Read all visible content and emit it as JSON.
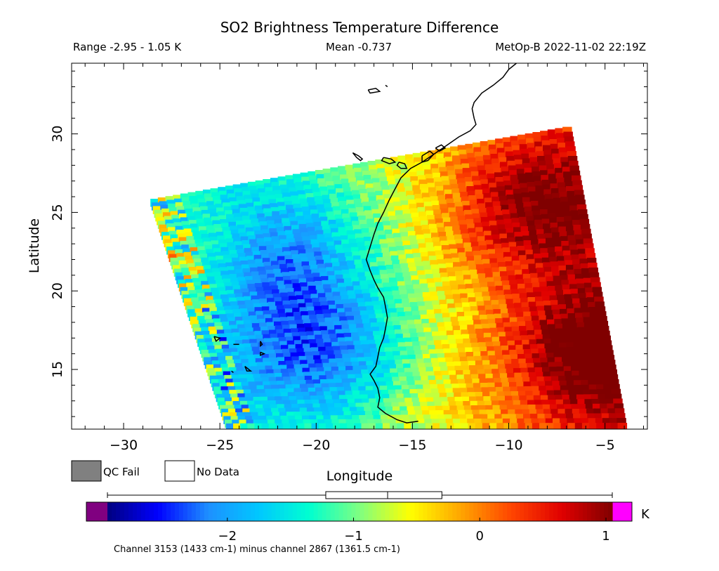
{
  "chart_data": {
    "type": "heatmap",
    "title": "SO2 Brightness Temperature Difference",
    "header": {
      "range_text": "Range -2.95 - 1.05 K",
      "mean_text": "Mean -0.737",
      "satellite_text": "MetOp-B 2022-11-02 22:19Z"
    },
    "xlabel": "Longitude",
    "ylabel": "Latitude",
    "xlim": [
      -32.7,
      -2.8
    ],
    "ylim": [
      11.2,
      34.5
    ],
    "xticks": [
      -30,
      -25,
      -20,
      -15,
      -10,
      -5
    ],
    "yticks": [
      15,
      20,
      25,
      30
    ],
    "x_minor_step": 1,
    "y_minor_step": 1,
    "swath_corners": {
      "top_left": [
        -28.6,
        25.7
      ],
      "top_right": [
        -6.8,
        30.4
      ],
      "bottom_right": [
        -3.9,
        11.2
      ],
      "bottom_left": [
        -24.6,
        11.2
      ]
    },
    "field_features": [
      {
        "name": "low minimum west-central",
        "lon": -19.5,
        "lat": 16.0,
        "value": -2.3
      },
      {
        "name": "low band northwest",
        "lon": -21.5,
        "lat": 22.0,
        "value": -2.0
      },
      {
        "name": "high maximum north-east",
        "lon": -8.5,
        "lat": 25.5,
        "value": 0.9
      },
      {
        "name": "high maximum south-east",
        "lon": -5.5,
        "lat": 16.0,
        "value": 0.95
      },
      {
        "name": "western edge noise",
        "lon": -27.5,
        "lat": 22.0,
        "value": 0.3
      }
    ],
    "colorbar": {
      "min": -2.95,
      "max": 1.05,
      "ticks": [
        -2,
        -1,
        0,
        1
      ],
      "unit": "K",
      "underflow_color": "#800080",
      "overflow_color": "#ff00ff",
      "colors": [
        "#000080",
        "#0000ff",
        "#1e90ff",
        "#00c8ff",
        "#00ffd0",
        "#80ff80",
        "#ffff00",
        "#ffa500",
        "#ff4500",
        "#e00000",
        "#800000"
      ],
      "boxplot": {
        "whisker_low": -2.95,
        "q1": -1.22,
        "median": -0.73,
        "q3": -0.3,
        "whisker_high": 1.05
      }
    },
    "caption": "Channel 3153 (1433 cm-1) minus channel 2867 (1361.5 cm-1)",
    "legend": [
      {
        "label": "QC Fail",
        "color": "#808080"
      },
      {
        "label": "No Data",
        "color": "#ffffff"
      }
    ],
    "coastline": [
      [
        [
          -9.6,
          34.5
        ],
        [
          -10.0,
          34.1
        ],
        [
          -10.3,
          33.6
        ],
        [
          -10.8,
          33.1
        ],
        [
          -11.4,
          32.6
        ],
        [
          -11.8,
          32.0
        ],
        [
          -11.9,
          31.6
        ],
        [
          -11.8,
          31.0
        ],
        [
          -11.7,
          30.6
        ],
        [
          -12.0,
          30.2
        ],
        [
          -12.6,
          29.8
        ],
        [
          -13.3,
          29.2
        ],
        [
          -13.9,
          28.7
        ],
        [
          -14.5,
          28.2
        ],
        [
          -15.1,
          27.8
        ],
        [
          -15.6,
          27.2
        ],
        [
          -15.9,
          26.5
        ],
        [
          -16.2,
          25.8
        ],
        [
          -16.5,
          25.0
        ],
        [
          -16.8,
          24.3
        ],
        [
          -17.0,
          23.6
        ],
        [
          -17.2,
          22.8
        ],
        [
          -17.4,
          22.0
        ],
        [
          -17.2,
          21.3
        ],
        [
          -17.0,
          20.7
        ],
        [
          -16.8,
          20.2
        ],
        [
          -16.5,
          19.6
        ],
        [
          -16.4,
          19.0
        ],
        [
          -16.3,
          18.3
        ],
        [
          -16.4,
          17.6
        ],
        [
          -16.5,
          17.0
        ],
        [
          -16.7,
          16.4
        ],
        [
          -16.8,
          15.8
        ],
        [
          -16.9,
          15.2
        ],
        [
          -17.2,
          14.7
        ],
        [
          -17.0,
          14.3
        ],
        [
          -16.8,
          13.8
        ],
        [
          -16.7,
          13.2
        ],
        [
          -16.8,
          12.6
        ],
        [
          -16.4,
          12.2
        ],
        [
          -15.8,
          11.8
        ],
        [
          -15.3,
          11.6
        ],
        [
          -14.7,
          11.7
        ]
      ],
      [
        [
          -18.1,
          28.8
        ],
        [
          -17.8,
          28.6
        ],
        [
          -17.6,
          28.4
        ],
        [
          -17.7,
          28.3
        ],
        [
          -17.9,
          28.5
        ],
        [
          -18.1,
          28.8
        ]
      ],
      [
        [
          -16.5,
          28.5
        ],
        [
          -16.1,
          28.4
        ],
        [
          -15.9,
          28.2
        ],
        [
          -16.2,
          28.1
        ],
        [
          -16.6,
          28.3
        ],
        [
          -16.5,
          28.5
        ]
      ],
      [
        [
          -15.7,
          28.2
        ],
        [
          -15.4,
          28.1
        ],
        [
          -15.3,
          27.8
        ],
        [
          -15.6,
          27.8
        ],
        [
          -15.8,
          28.0
        ],
        [
          -15.7,
          28.2
        ]
      ],
      [
        [
          -14.5,
          28.6
        ],
        [
          -14.1,
          28.9
        ],
        [
          -13.9,
          28.7
        ],
        [
          -14.2,
          28.3
        ],
        [
          -14.5,
          28.2
        ],
        [
          -14.5,
          28.6
        ]
      ],
      [
        [
          -13.8,
          29.1
        ],
        [
          -13.5,
          29.3
        ],
        [
          -13.3,
          29.1
        ],
        [
          -13.6,
          28.9
        ],
        [
          -13.8,
          29.1
        ]
      ],
      [
        [
          -17.3,
          32.8
        ],
        [
          -16.9,
          32.9
        ],
        [
          -16.7,
          32.7
        ],
        [
          -17.2,
          32.6
        ],
        [
          -17.3,
          32.8
        ]
      ],
      [
        [
          -16.4,
          33.1
        ],
        [
          -16.3,
          33.0
        ]
      ],
      [
        [
          -25.3,
          17.1
        ],
        [
          -25.0,
          17.0
        ],
        [
          -25.2,
          16.8
        ],
        [
          -25.3,
          17.1
        ]
      ],
      [
        [
          -24.3,
          16.6
        ],
        [
          -24.0,
          16.6
        ]
      ],
      [
        [
          -22.9,
          16.8
        ],
        [
          -22.8,
          16.6
        ],
        [
          -22.9,
          16.5
        ],
        [
          -22.9,
          16.8
        ]
      ],
      [
        [
          -22.9,
          16.1
        ],
        [
          -22.7,
          16.0
        ],
        [
          -22.9,
          15.9
        ],
        [
          -22.9,
          16.1
        ]
      ],
      [
        [
          -23.7,
          15.2
        ],
        [
          -23.4,
          14.9
        ],
        [
          -23.6,
          14.9
        ],
        [
          -23.7,
          15.2
        ]
      ],
      [
        [
          -24.4,
          14.9
        ],
        [
          -24.3,
          14.8
        ]
      ]
    ]
  }
}
